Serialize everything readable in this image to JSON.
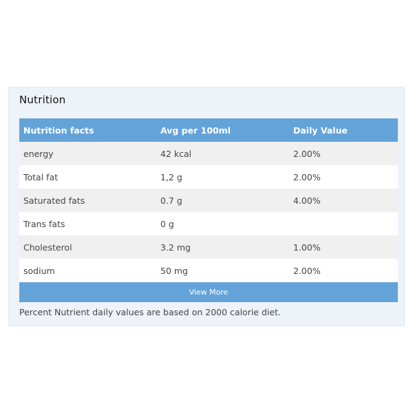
{
  "panel": {
    "title": "Nutrition"
  },
  "table": {
    "headers": [
      "Nutrition facts",
      "Avg per 100ml",
      "Daily Value"
    ],
    "rows": [
      [
        "energy",
        "42 kcal",
        "2.00%"
      ],
      [
        "Total fat",
        "1,2 g",
        "2.00%"
      ],
      [
        "Saturated fats",
        "0.7 g",
        "4.00%"
      ],
      [
        "Trans fats",
        "0 g",
        ""
      ],
      [
        "Cholesterol",
        "3.2 mg",
        "1.00%"
      ],
      [
        "sodium",
        "50 mg",
        "2.00%"
      ]
    ]
  },
  "view_more_label": "View More",
  "footnote": "Percent Nutrient daily values are based on 2000 calorie diet.",
  "colors": {
    "header_bg": "#64a3d8",
    "panel_bg": "#eef3fa",
    "odd_row_bg": "#f0f0f0"
  }
}
